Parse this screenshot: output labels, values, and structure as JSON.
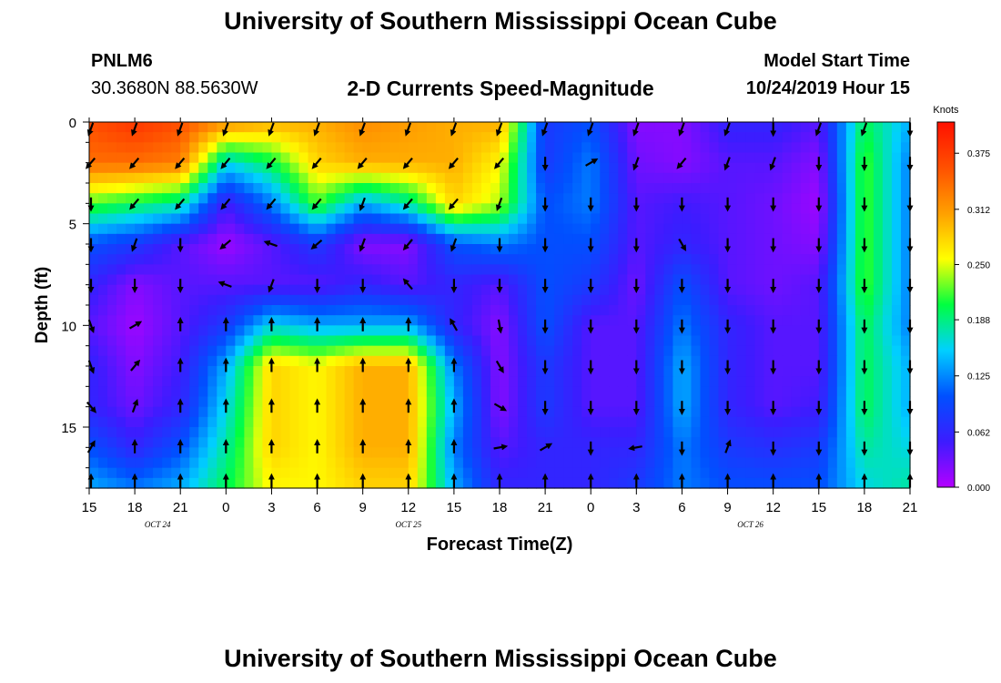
{
  "header": {
    "title": "University of Southern Mississippi Ocean Cube",
    "station": "PNLM6",
    "coordinates": "30.3680N 88.5630W",
    "subtitle": "2-D Currents Speed-Magnitude",
    "model_start_label": "Model Start Time",
    "model_start_value": "10/24/2019 Hour 15"
  },
  "footer": {
    "title": "University of Southern Mississippi Ocean Cube"
  },
  "chart_data": {
    "type": "heatmap",
    "xlabel": "Forecast Time(Z)",
    "ylabel": "Depth (ft)",
    "x_ticks": [
      "15",
      "18",
      "21",
      "0",
      "3",
      "6",
      "9",
      "12",
      "15",
      "18",
      "21",
      "0",
      "3",
      "6",
      "9",
      "12",
      "15",
      "18",
      "21"
    ],
    "date_labels": [
      {
        "label": "OCT 24",
        "tick_index": 1.5
      },
      {
        "label": "OCT 25",
        "tick_index": 7
      },
      {
        "label": "OCT 26",
        "tick_index": 14.5
      }
    ],
    "y_ticks": [
      0,
      5,
      10,
      15
    ],
    "ylim": [
      0,
      18
    ],
    "y_inverted": true,
    "colorbar": {
      "unit": "Knots",
      "min": 0.0,
      "max": 0.41,
      "ticks": [
        "0.000",
        "0.062",
        "0.125",
        "0.188",
        "0.250",
        "0.312",
        "0.375"
      ],
      "colors": [
        "#b400ff",
        "#3c1cff",
        "#0050ff",
        "#00d0ff",
        "#00ff40",
        "#ffff00",
        "#ffa000",
        "#ff5000",
        "#ff1000"
      ]
    },
    "speed_grid": {
      "depths_ft": [
        0,
        2,
        4,
        6,
        8,
        10,
        12,
        14,
        16,
        18
      ],
      "note_cols": "columns align with x_ticks (3-hour steps)",
      "values": [
        [
          0.36,
          0.38,
          0.36,
          0.32,
          0.3,
          0.3,
          0.32,
          0.31,
          0.3,
          0.3,
          0.08,
          0.1,
          0.02,
          0.02,
          0.06,
          0.06,
          0.04,
          0.2,
          0.14
        ],
        [
          0.34,
          0.34,
          0.33,
          0.16,
          0.2,
          0.28,
          0.3,
          0.3,
          0.3,
          0.26,
          0.08,
          0.12,
          0.03,
          0.02,
          0.04,
          0.04,
          0.02,
          0.22,
          0.12
        ],
        [
          0.22,
          0.2,
          0.18,
          0.05,
          0.12,
          0.22,
          0.14,
          0.18,
          0.28,
          0.24,
          0.1,
          0.12,
          0.04,
          0.05,
          0.04,
          0.03,
          0.01,
          0.22,
          0.12
        ],
        [
          0.1,
          0.08,
          0.04,
          0.01,
          0.04,
          0.08,
          0.02,
          0.02,
          0.1,
          0.12,
          0.1,
          0.1,
          0.04,
          0.06,
          0.04,
          0.03,
          0.02,
          0.22,
          0.12
        ],
        [
          0.06,
          0.02,
          0.04,
          0.04,
          0.04,
          0.04,
          0.06,
          0.04,
          0.06,
          0.04,
          0.1,
          0.08,
          0.03,
          0.1,
          0.04,
          0.03,
          0.04,
          0.22,
          0.12
        ],
        [
          0.04,
          0.01,
          0.04,
          0.08,
          0.16,
          0.14,
          0.14,
          0.14,
          0.06,
          0.02,
          0.1,
          0.04,
          0.04,
          0.12,
          0.06,
          0.04,
          0.04,
          0.2,
          0.12
        ],
        [
          0.06,
          0.02,
          0.05,
          0.14,
          0.28,
          0.26,
          0.3,
          0.3,
          0.12,
          0.02,
          0.08,
          0.04,
          0.04,
          0.14,
          0.06,
          0.04,
          0.04,
          0.2,
          0.14
        ],
        [
          0.06,
          0.03,
          0.06,
          0.16,
          0.28,
          0.26,
          0.3,
          0.3,
          0.14,
          0.02,
          0.08,
          0.04,
          0.04,
          0.14,
          0.06,
          0.04,
          0.05,
          0.2,
          0.14
        ],
        [
          0.1,
          0.06,
          0.1,
          0.18,
          0.28,
          0.26,
          0.3,
          0.3,
          0.12,
          0.04,
          0.06,
          0.06,
          0.06,
          0.12,
          0.08,
          0.07,
          0.08,
          0.18,
          0.16
        ],
        [
          0.14,
          0.12,
          0.14,
          0.2,
          0.26,
          0.26,
          0.28,
          0.28,
          0.14,
          0.06,
          0.06,
          0.06,
          0.08,
          0.12,
          0.1,
          0.1,
          0.1,
          0.16,
          0.18
        ]
      ]
    },
    "arrow_depths_ft": [
      0,
      2,
      4,
      6,
      8,
      10,
      12,
      14,
      16,
      18
    ],
    "arrow_directions_deg": [
      [
        200,
        200,
        200,
        200,
        200,
        200,
        200,
        200,
        200,
        200,
        200,
        200,
        200,
        200,
        200,
        180,
        200,
        200,
        180
      ],
      [
        220,
        220,
        220,
        220,
        220,
        220,
        220,
        220,
        220,
        220,
        180,
        60,
        200,
        220,
        200,
        200,
        180,
        180,
        180
      ],
      [
        180,
        220,
        220,
        220,
        220,
        220,
        200,
        220,
        220,
        200,
        180,
        180,
        180,
        180,
        180,
        180,
        180,
        180,
        180
      ],
      [
        180,
        200,
        180,
        230,
        290,
        230,
        200,
        220,
        200,
        180,
        180,
        180,
        180,
        150,
        180,
        180,
        180,
        180,
        180
      ],
      [
        180,
        180,
        180,
        290,
        200,
        180,
        180,
        320,
        180,
        180,
        180,
        180,
        180,
        180,
        180,
        180,
        180,
        180,
        180
      ],
      [
        160,
        60,
        0,
        0,
        0,
        0,
        0,
        0,
        330,
        170,
        180,
        180,
        180,
        180,
        180,
        180,
        180,
        180,
        180
      ],
      [
        160,
        40,
        0,
        0,
        0,
        0,
        0,
        0,
        0,
        150,
        180,
        180,
        180,
        180,
        180,
        180,
        180,
        180,
        180
      ],
      [
        140,
        20,
        0,
        0,
        0,
        0,
        0,
        0,
        0,
        120,
        180,
        180,
        180,
        180,
        180,
        180,
        180,
        180,
        180
      ],
      [
        30,
        0,
        0,
        0,
        0,
        0,
        0,
        0,
        0,
        80,
        60,
        180,
        260,
        180,
        20,
        180,
        180,
        180,
        180
      ],
      [
        0,
        0,
        0,
        0,
        0,
        0,
        0,
        0,
        0,
        0,
        0,
        0,
        0,
        0,
        0,
        0,
        0,
        0,
        0
      ]
    ]
  }
}
